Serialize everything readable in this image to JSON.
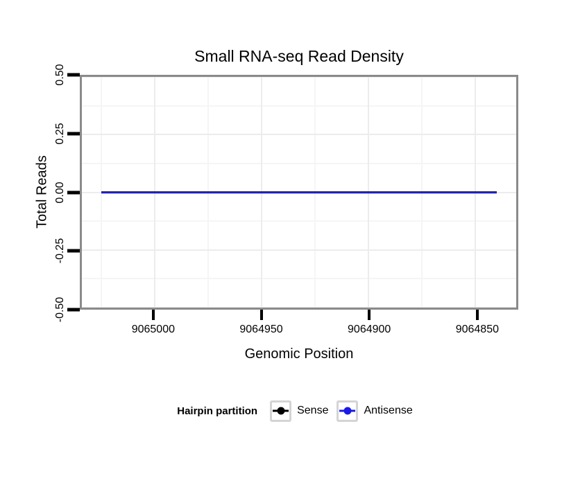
{
  "title": "Small RNA-seq Read Density",
  "axes": {
    "x": {
      "label": "Genomic Position",
      "tick_labels": [
        "9065000",
        "9064950",
        "9064900",
        "9064850"
      ]
    },
    "y": {
      "label": "Total Reads",
      "tick_labels": [
        "0.50",
        "0.25",
        "0.00",
        "-0.25",
        "-0.50"
      ]
    }
  },
  "legend": {
    "title": "Hairpin partition",
    "items": [
      {
        "label": "Sense",
        "color": "#000000"
      },
      {
        "label": "Antisense",
        "color": "#1a1ae6"
      }
    ]
  },
  "colors": {
    "panel_border": "#8a8a8a",
    "grid_major": "#ececec",
    "grid_minor": "#f5f5f5",
    "axis_tick": "#000000",
    "legend_key_border": "#d4d4d4"
  },
  "chart_data": {
    "type": "line",
    "title": "Small RNA-seq Read Density",
    "xlabel": "Genomic Position",
    "ylabel": "Total Reads",
    "x_axis_reversed": true,
    "x_ticks": [
      9065000,
      9064950,
      9064900,
      9064850
    ],
    "y_ticks": [
      0.5,
      0.25,
      0.0,
      -0.25,
      -0.5
    ],
    "x_range_shown": [
      9065034,
      9064831
    ],
    "ylim": [
      -0.5,
      0.5
    ],
    "grid": true,
    "legend_position": "bottom",
    "legend_title": "Hairpin partition",
    "series": [
      {
        "name": "Sense",
        "color": "#000000",
        "x": [
          9065025,
          9064840
        ],
        "y": [
          0,
          0
        ]
      },
      {
        "name": "Antisense",
        "color": "#1a1ae6",
        "x": [
          9065025,
          9064840
        ],
        "y": [
          0,
          0
        ]
      }
    ]
  }
}
